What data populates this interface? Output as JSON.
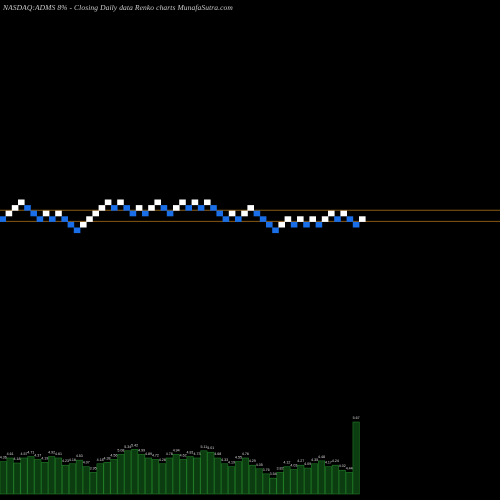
{
  "chart_data": {
    "type": "renko",
    "title": "NASDAQ:ADMS 8% - Closing Daily data Renko charts MunafaSutra.com",
    "colors": {
      "background": "#000000",
      "up_brick": "#ffffff",
      "down_brick": "#1a6ee8",
      "reference_line": "#8a5a12",
      "volume_bar": "#0c3d10",
      "volume_bar_outline": "#1f7a26"
    },
    "reference_lines": [
      {
        "name": "upper",
        "level": 15
      },
      {
        "name": "lower",
        "level": 13
      }
    ],
    "bricks": [
      {
        "level": 14,
        "dir": "down"
      },
      {
        "level": 15,
        "dir": "up"
      },
      {
        "level": 16,
        "dir": "up"
      },
      {
        "level": 17,
        "dir": "up"
      },
      {
        "level": 16,
        "dir": "down"
      },
      {
        "level": 15,
        "dir": "down"
      },
      {
        "level": 14,
        "dir": "down"
      },
      {
        "level": 15,
        "dir": "up"
      },
      {
        "level": 14,
        "dir": "down"
      },
      {
        "level": 15,
        "dir": "up"
      },
      {
        "level": 14,
        "dir": "down"
      },
      {
        "level": 13,
        "dir": "down"
      },
      {
        "level": 12,
        "dir": "down"
      },
      {
        "level": 13,
        "dir": "up"
      },
      {
        "level": 14,
        "dir": "up"
      },
      {
        "level": 15,
        "dir": "up"
      },
      {
        "level": 16,
        "dir": "up"
      },
      {
        "level": 17,
        "dir": "up"
      },
      {
        "level": 16,
        "dir": "down"
      },
      {
        "level": 17,
        "dir": "up"
      },
      {
        "level": 16,
        "dir": "down"
      },
      {
        "level": 15,
        "dir": "down"
      },
      {
        "level": 16,
        "dir": "up"
      },
      {
        "level": 15,
        "dir": "down"
      },
      {
        "level": 16,
        "dir": "up"
      },
      {
        "level": 17,
        "dir": "up"
      },
      {
        "level": 16,
        "dir": "down"
      },
      {
        "level": 15,
        "dir": "down"
      },
      {
        "level": 16,
        "dir": "up"
      },
      {
        "level": 17,
        "dir": "up"
      },
      {
        "level": 16,
        "dir": "down"
      },
      {
        "level": 17,
        "dir": "up"
      },
      {
        "level": 16,
        "dir": "down"
      },
      {
        "level": 17,
        "dir": "up"
      },
      {
        "level": 16,
        "dir": "down"
      },
      {
        "level": 15,
        "dir": "down"
      },
      {
        "level": 14,
        "dir": "down"
      },
      {
        "level": 15,
        "dir": "up"
      },
      {
        "level": 14,
        "dir": "down"
      },
      {
        "level": 15,
        "dir": "up"
      },
      {
        "level": 16,
        "dir": "up"
      },
      {
        "level": 15,
        "dir": "down"
      },
      {
        "level": 14,
        "dir": "down"
      },
      {
        "level": 13,
        "dir": "down"
      },
      {
        "level": 12,
        "dir": "down"
      },
      {
        "level": 13,
        "dir": "up"
      },
      {
        "level": 14,
        "dir": "up"
      },
      {
        "level": 13,
        "dir": "down"
      },
      {
        "level": 14,
        "dir": "up"
      },
      {
        "level": 13,
        "dir": "down"
      },
      {
        "level": 14,
        "dir": "up"
      },
      {
        "level": 13,
        "dir": "down"
      },
      {
        "level": 14,
        "dir": "up"
      },
      {
        "level": 15,
        "dir": "up"
      },
      {
        "level": 14,
        "dir": "down"
      },
      {
        "level": 15,
        "dir": "up"
      },
      {
        "level": 14,
        "dir": "down"
      },
      {
        "level": 13,
        "dir": "down"
      },
      {
        "level": 14,
        "dir": "up"
      }
    ],
    "volume": [
      {
        "value": 0.45,
        "label": "4.36"
      },
      {
        "value": 0.5,
        "label": "4.61"
      },
      {
        "value": 0.43,
        "label": "4.18"
      },
      {
        "value": 0.5,
        "label": "4.57"
      },
      {
        "value": 0.52,
        "label": "4.71"
      },
      {
        "value": 0.48,
        "label": "4.37"
      },
      {
        "value": 0.44,
        "label": "4.19"
      },
      {
        "value": 0.52,
        "label": "4.92"
      },
      {
        "value": 0.5,
        "label": "4.61"
      },
      {
        "value": 0.4,
        "label": "4.23"
      },
      {
        "value": 0.42,
        "label": "4.16"
      },
      {
        "value": 0.47,
        "label": "4.53"
      },
      {
        "value": 0.38,
        "label": "4.07"
      },
      {
        "value": 0.3,
        "label": "3.95"
      },
      {
        "value": 0.42,
        "label": "4.18"
      },
      {
        "value": 0.44,
        "label": "4.38"
      },
      {
        "value": 0.48,
        "label": "4.56"
      },
      {
        "value": 0.55,
        "label": "5.08"
      },
      {
        "value": 0.6,
        "label": "5.34"
      },
      {
        "value": 0.62,
        "label": "5.42"
      },
      {
        "value": 0.55,
        "label": "4.99"
      },
      {
        "value": 0.5,
        "label": "4.89"
      },
      {
        "value": 0.48,
        "label": "4.72"
      },
      {
        "value": 0.42,
        "label": "4.26"
      },
      {
        "value": 0.5,
        "label": "4.78"
      },
      {
        "value": 0.55,
        "label": "4.94"
      },
      {
        "value": 0.48,
        "label": "4.62"
      },
      {
        "value": 0.52,
        "label": "4.81"
      },
      {
        "value": 0.5,
        "label": "4.73"
      },
      {
        "value": 0.6,
        "label": "5.11"
      },
      {
        "value": 0.58,
        "label": "5.01"
      },
      {
        "value": 0.5,
        "label": "4.68"
      },
      {
        "value": 0.42,
        "label": "4.33"
      },
      {
        "value": 0.38,
        "label": "4.19"
      },
      {
        "value": 0.45,
        "label": "4.55"
      },
      {
        "value": 0.5,
        "label": "4.76"
      },
      {
        "value": 0.4,
        "label": "4.29"
      },
      {
        "value": 0.35,
        "label": "4.05"
      },
      {
        "value": 0.28,
        "label": "3.76"
      },
      {
        "value": 0.22,
        "label": "3.54"
      },
      {
        "value": 0.3,
        "label": "3.82"
      },
      {
        "value": 0.38,
        "label": "4.12"
      },
      {
        "value": 0.34,
        "label": "4.03"
      },
      {
        "value": 0.4,
        "label": "4.27"
      },
      {
        "value": 0.36,
        "label": "4.09"
      },
      {
        "value": 0.42,
        "label": "4.35"
      },
      {
        "value": 0.46,
        "label": "4.48"
      },
      {
        "value": 0.38,
        "label": "4.17"
      },
      {
        "value": 0.4,
        "label": "4.24"
      },
      {
        "value": 0.33,
        "label": "4.02"
      },
      {
        "value": 0.3,
        "label": "4.44"
      },
      {
        "value": 1.0,
        "label": "5.67"
      }
    ]
  }
}
